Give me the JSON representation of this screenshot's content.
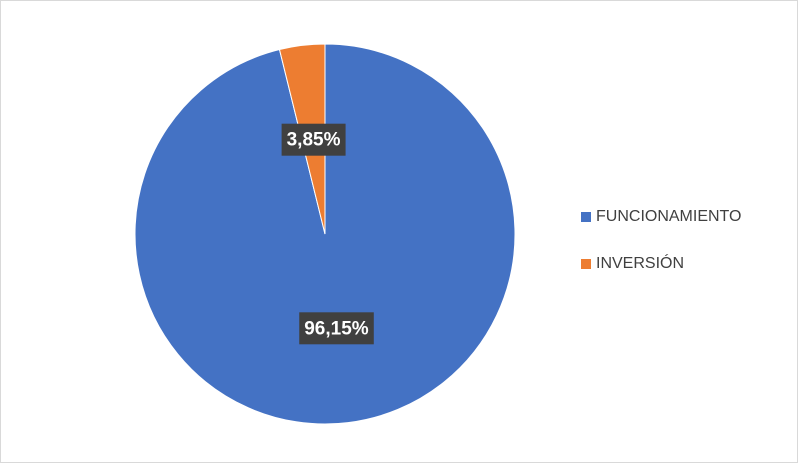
{
  "chart_data": {
    "type": "pie",
    "categories": [
      "FUNCIONAMIENTO",
      "INVERSIÓN"
    ],
    "values": [
      96.15,
      3.85
    ],
    "value_labels": [
      "96,15%",
      "3,85%"
    ],
    "colors": [
      "#4472c4",
      "#ed7d31"
    ],
    "legend": "right"
  }
}
